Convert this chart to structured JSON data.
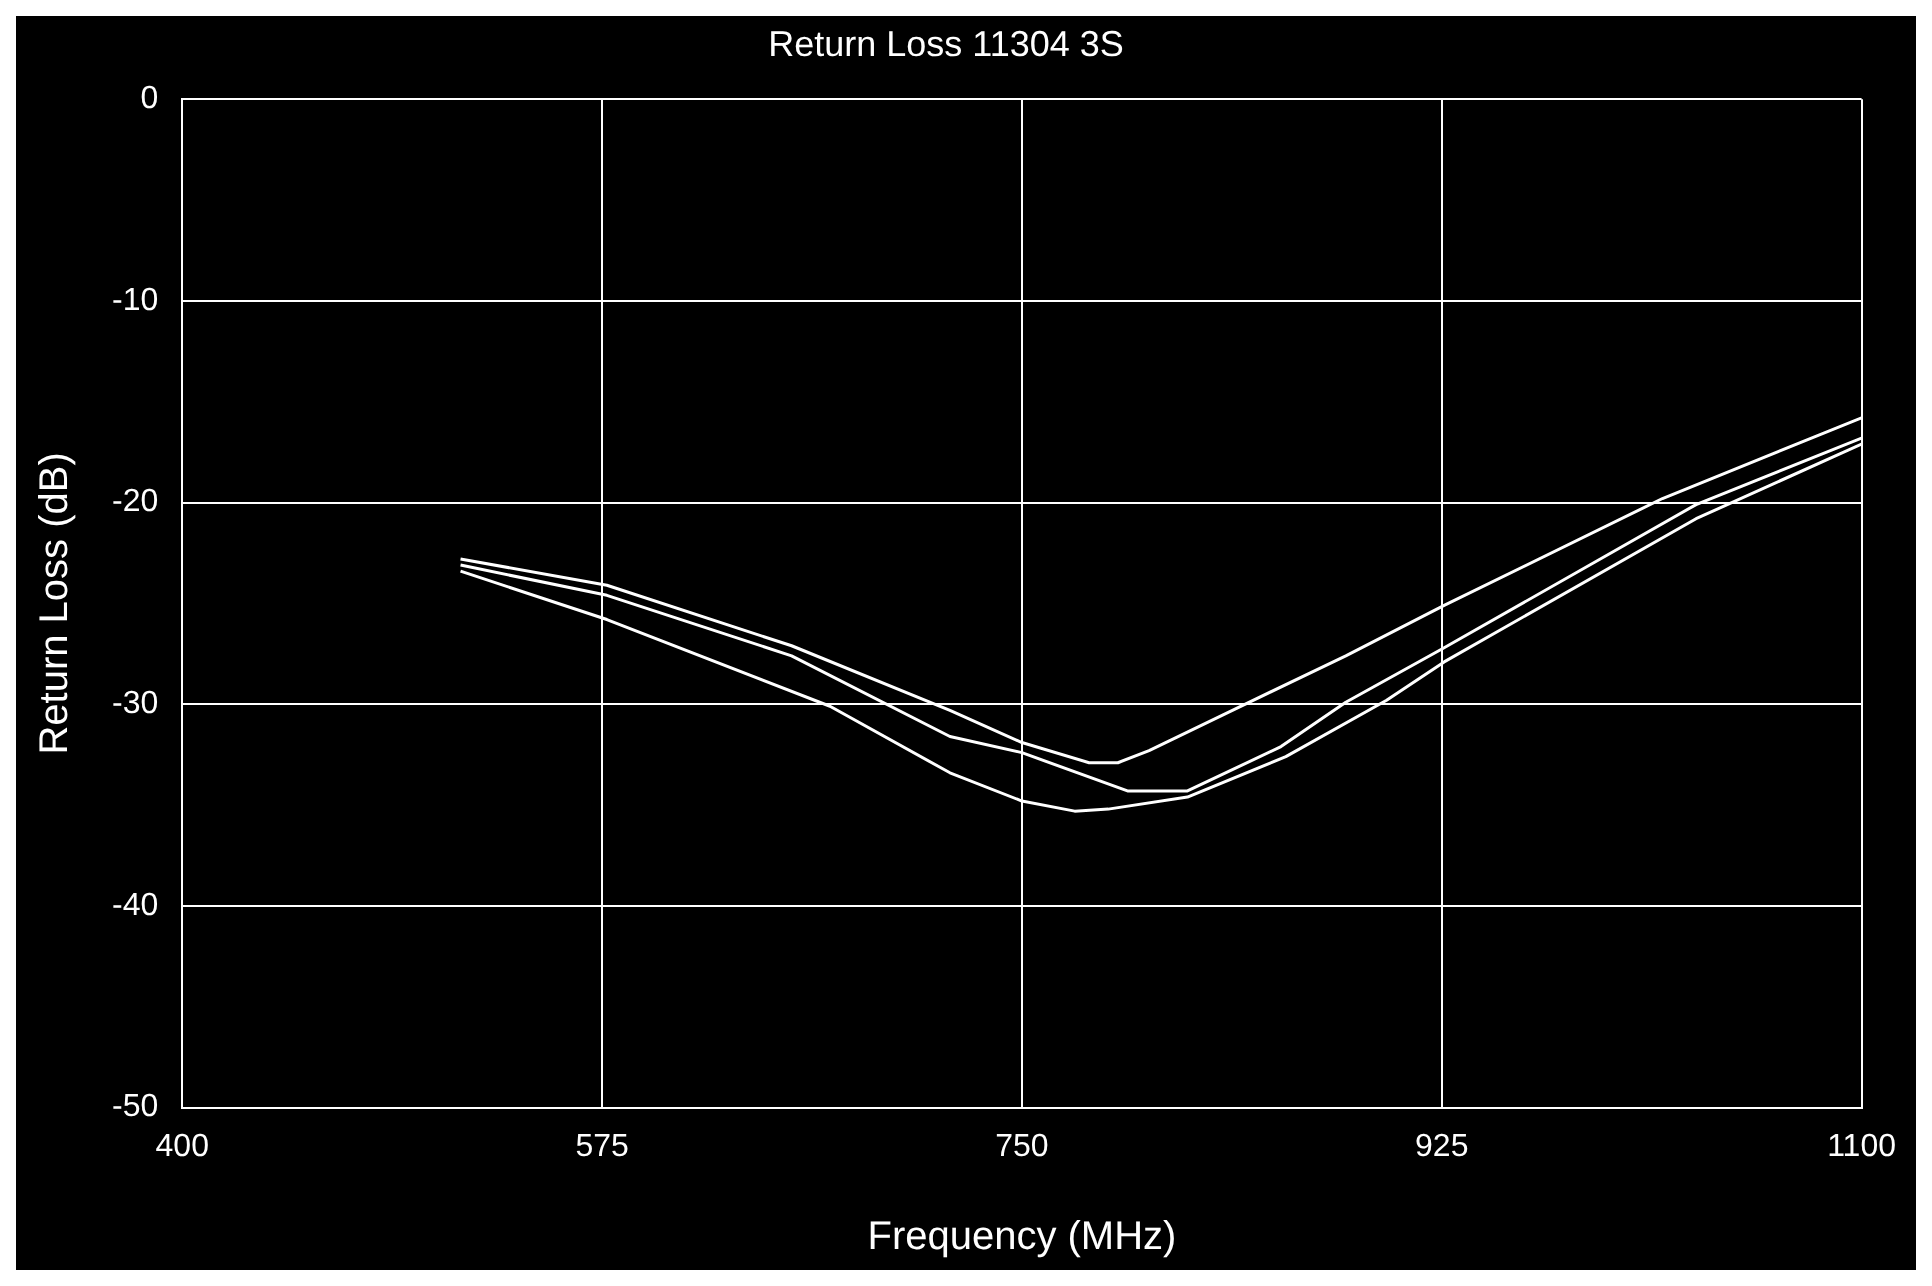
{
  "chart_data": {
    "type": "line",
    "title": "Return Loss 11304 3S",
    "xlabel": "Frequency (MHz)",
    "ylabel": "Return Loss (dB)",
    "xlim": [
      400,
      1100
    ],
    "xticks": [
      400,
      575,
      750,
      925,
      1100
    ],
    "ylim": [
      -50,
      0
    ],
    "yticks": [
      -50,
      -40,
      -30,
      -20,
      -10,
      0
    ],
    "grid": true,
    "legend": false,
    "marker": "none",
    "series": [
      {
        "color": "#ffffff",
        "x": [
          516,
          577,
          654,
          720,
          750,
          778,
          790,
          803,
          836,
          885,
          926,
          1017,
          1100
        ],
        "values": [
          -22.8,
          -24.1,
          -27.1,
          -30.3,
          -31.9,
          -32.9,
          -32.9,
          -32.3,
          -30.4,
          -27.6,
          -25.1,
          -19.8,
          -15.8
        ]
      },
      {
        "color": "#ffffff",
        "x": [
          516,
          577,
          654,
          720,
          750,
          794,
          819,
          858,
          885,
          926,
          1031,
          1100
        ],
        "values": [
          -23.1,
          -24.6,
          -27.6,
          -31.6,
          -32.4,
          -34.3,
          -34.3,
          -32.1,
          -29.9,
          -27.2,
          -20.1,
          -16.8
        ]
      },
      {
        "color": "#ffffff",
        "x": [
          516,
          577,
          670,
          720,
          750,
          772,
          786,
          819,
          860,
          902,
          926,
          1031,
          1100
        ],
        "values": [
          -23.4,
          -25.8,
          -30.1,
          -33.4,
          -34.8,
          -35.3,
          -35.2,
          -34.6,
          -32.6,
          -29.8,
          -27.9,
          -20.8,
          -17.1
        ]
      }
    ]
  }
}
